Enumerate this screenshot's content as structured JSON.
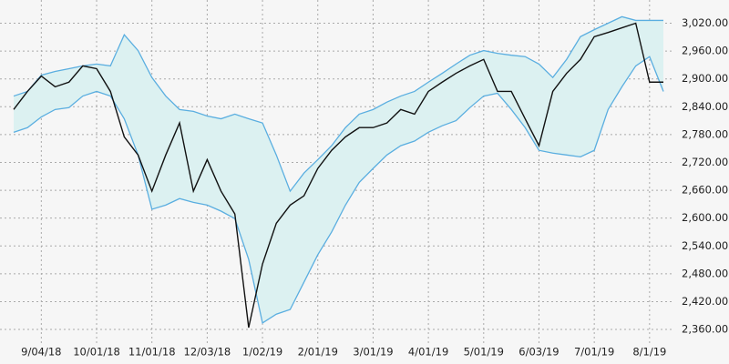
{
  "chart_data": {
    "type": "line",
    "categories": [
      null,
      null,
      "9/04/18",
      null,
      null,
      null,
      "10/01/18",
      null,
      null,
      null,
      "11/01/18",
      null,
      null,
      null,
      "12/03/18",
      null,
      null,
      null,
      "1/02/19",
      null,
      null,
      null,
      "2/01/19",
      null,
      null,
      null,
      "3/01/19",
      null,
      null,
      null,
      "4/01/19",
      null,
      null,
      null,
      "5/01/19",
      null,
      null,
      null,
      "6/03/19",
      null,
      null,
      null,
      "7/01/19",
      null,
      null,
      null,
      "8/1/19",
      null
    ],
    "series": [
      {
        "color": "#5aaee0",
        "values": [
          2863,
          2873,
          2908,
          2916,
          2922,
          2928,
          2932,
          2928,
          2995,
          2961,
          2903,
          2863,
          2834,
          2830,
          2820,
          2814,
          2824,
          2814,
          2805,
          2736,
          2658,
          2697,
          2726,
          2756,
          2795,
          2824,
          2834,
          2850,
          2863,
          2873,
          2893,
          2912,
          2932,
          2951,
          2961,
          2955,
          2951,
          2948,
          2932,
          2903,
          2942,
          2991,
          3006,
          3020,
          3034,
          3026,
          3026,
          3026
        ]
      },
      {
        "color": "#5aaee0",
        "values": [
          2785,
          2795,
          2818,
          2834,
          2838,
          2863,
          2873,
          2863,
          2814,
          2736,
          2619,
          2628,
          2642,
          2634,
          2628,
          2615,
          2599,
          2511,
          2374,
          2393,
          2403,
          2462,
          2521,
          2570,
          2628,
          2677,
          2707,
          2736,
          2756,
          2766,
          2785,
          2799,
          2810,
          2838,
          2863,
          2869,
          2834,
          2795,
          2746,
          2740,
          2736,
          2732,
          2746,
          2834,
          2883,
          2928,
          2948,
          2873
        ]
      },
      {
        "color": "#111111",
        "values": [
          2834,
          2873,
          2906,
          2883,
          2893,
          2928,
          2922,
          2873,
          2775,
          2736,
          2658,
          2736,
          2805,
          2658,
          2726,
          2658,
          2609,
          2364,
          2501,
          2589,
          2628,
          2648,
          2707,
          2746,
          2775,
          2795,
          2795,
          2805,
          2834,
          2824,
          2873,
          2893,
          2912,
          2928,
          2942,
          2873,
          2873,
          2814,
          2756,
          2873,
          2912,
          2942,
          2991,
          3000,
          3010,
          3020,
          2893,
          2893
        ]
      }
    ],
    "band_fill": "#dcf1f1",
    "ylim": [
      2315,
      3070
    ],
    "yticks": [
      {
        "value": 2360,
        "label": "2,360.00"
      },
      {
        "value": 2420,
        "label": "2,420.00"
      },
      {
        "value": 2480,
        "label": "2,480.00"
      },
      {
        "value": 2540,
        "label": "2,540.00"
      },
      {
        "value": 2600,
        "label": "2,600.00"
      },
      {
        "value": 2660,
        "label": "2,660.00"
      },
      {
        "value": 2720,
        "label": "2,720.00"
      },
      {
        "value": 2780,
        "label": "2,780.00"
      },
      {
        "value": 2840,
        "label": "2,840.00"
      },
      {
        "value": 2900,
        "label": "2,900.00"
      },
      {
        "value": 2960,
        "label": "2,960.00"
      },
      {
        "value": 3020,
        "label": "3,020.00"
      }
    ],
    "grid": true
  }
}
